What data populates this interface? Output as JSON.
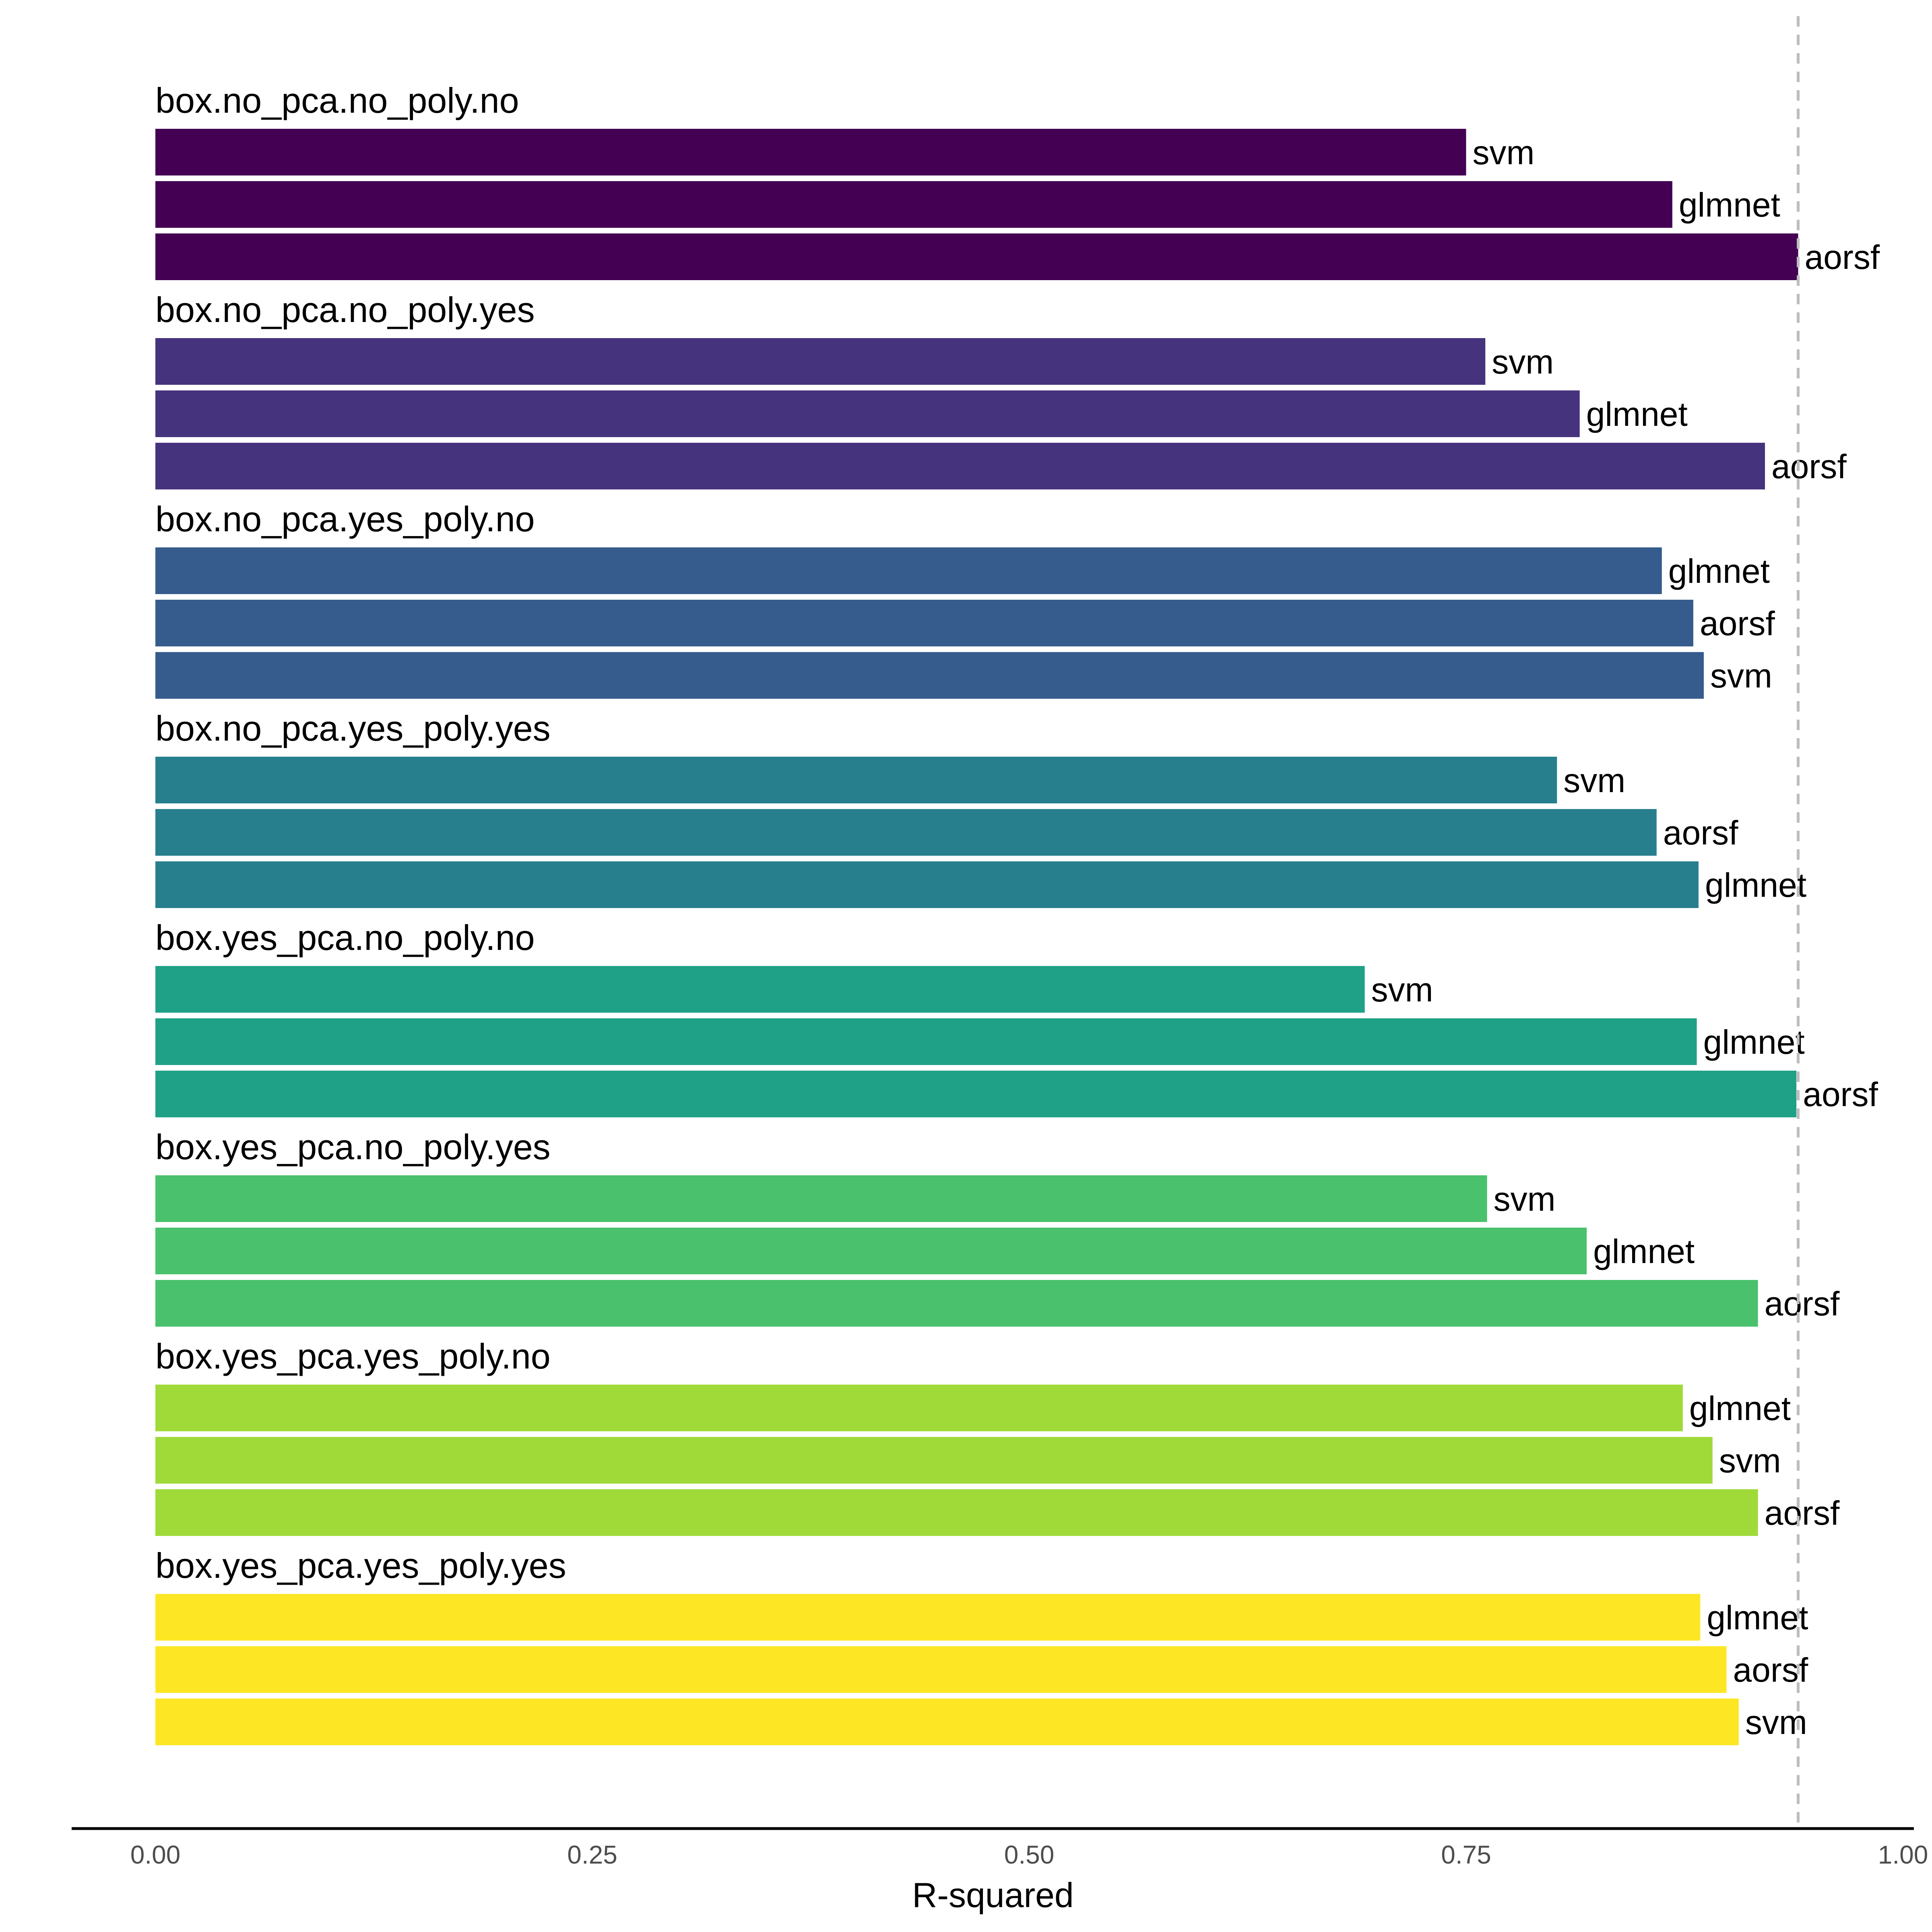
{
  "chart_data": {
    "type": "bar",
    "orientation": "horizontal",
    "xlabel": "R-squared",
    "xlim": [
      0,
      1
    ],
    "x_ticks": [
      "0.00",
      "0.25",
      "0.50",
      "0.75",
      "1.00"
    ],
    "reference_line": {
      "value": 0.94,
      "style": "dashed",
      "color": "#bdbdbd"
    },
    "grid": false,
    "legend": "none",
    "groups": [
      {
        "name": "box.no_pca.no_poly.no",
        "color": "#440154",
        "bars": [
          {
            "model": "svm",
            "value": 0.75
          },
          {
            "model": "glmnet",
            "value": 0.868
          },
          {
            "model": "aorsf",
            "value": 0.94
          }
        ]
      },
      {
        "name": "box.no_pca.no_poly.yes",
        "color": "#46337e",
        "bars": [
          {
            "model": "svm",
            "value": 0.761
          },
          {
            "model": "glmnet",
            "value": 0.815
          },
          {
            "model": "aorsf",
            "value": 0.921
          }
        ]
      },
      {
        "name": "box.no_pca.yes_poly.no",
        "color": "#365c8d",
        "bars": [
          {
            "model": "glmnet",
            "value": 0.862
          },
          {
            "model": "aorsf",
            "value": 0.88
          },
          {
            "model": "svm",
            "value": 0.886
          }
        ]
      },
      {
        "name": "box.no_pca.yes_poly.yes",
        "color": "#277f8e",
        "bars": [
          {
            "model": "svm",
            "value": 0.802
          },
          {
            "model": "aorsf",
            "value": 0.859
          },
          {
            "model": "glmnet",
            "value": 0.883
          }
        ]
      },
      {
        "name": "box.yes_pca.no_poly.no",
        "color": "#1fa187",
        "bars": [
          {
            "model": "svm",
            "value": 0.692
          },
          {
            "model": "glmnet",
            "value": 0.882
          },
          {
            "model": "aorsf",
            "value": 0.939
          }
        ]
      },
      {
        "name": "box.yes_pca.no_poly.yes",
        "color": "#4ac16d",
        "bars": [
          {
            "model": "svm",
            "value": 0.762
          },
          {
            "model": "glmnet",
            "value": 0.819
          },
          {
            "model": "aorsf",
            "value": 0.917
          }
        ]
      },
      {
        "name": "box.yes_pca.yes_poly.no",
        "color": "#a0da39",
        "bars": [
          {
            "model": "glmnet",
            "value": 0.874
          },
          {
            "model": "svm",
            "value": 0.891
          },
          {
            "model": "aorsf",
            "value": 0.917
          }
        ]
      },
      {
        "name": "box.yes_pca.yes_poly.yes",
        "color": "#fde725",
        "bars": [
          {
            "model": "glmnet",
            "value": 0.884
          },
          {
            "model": "aorsf",
            "value": 0.899
          },
          {
            "model": "svm",
            "value": 0.906
          }
        ]
      }
    ]
  }
}
